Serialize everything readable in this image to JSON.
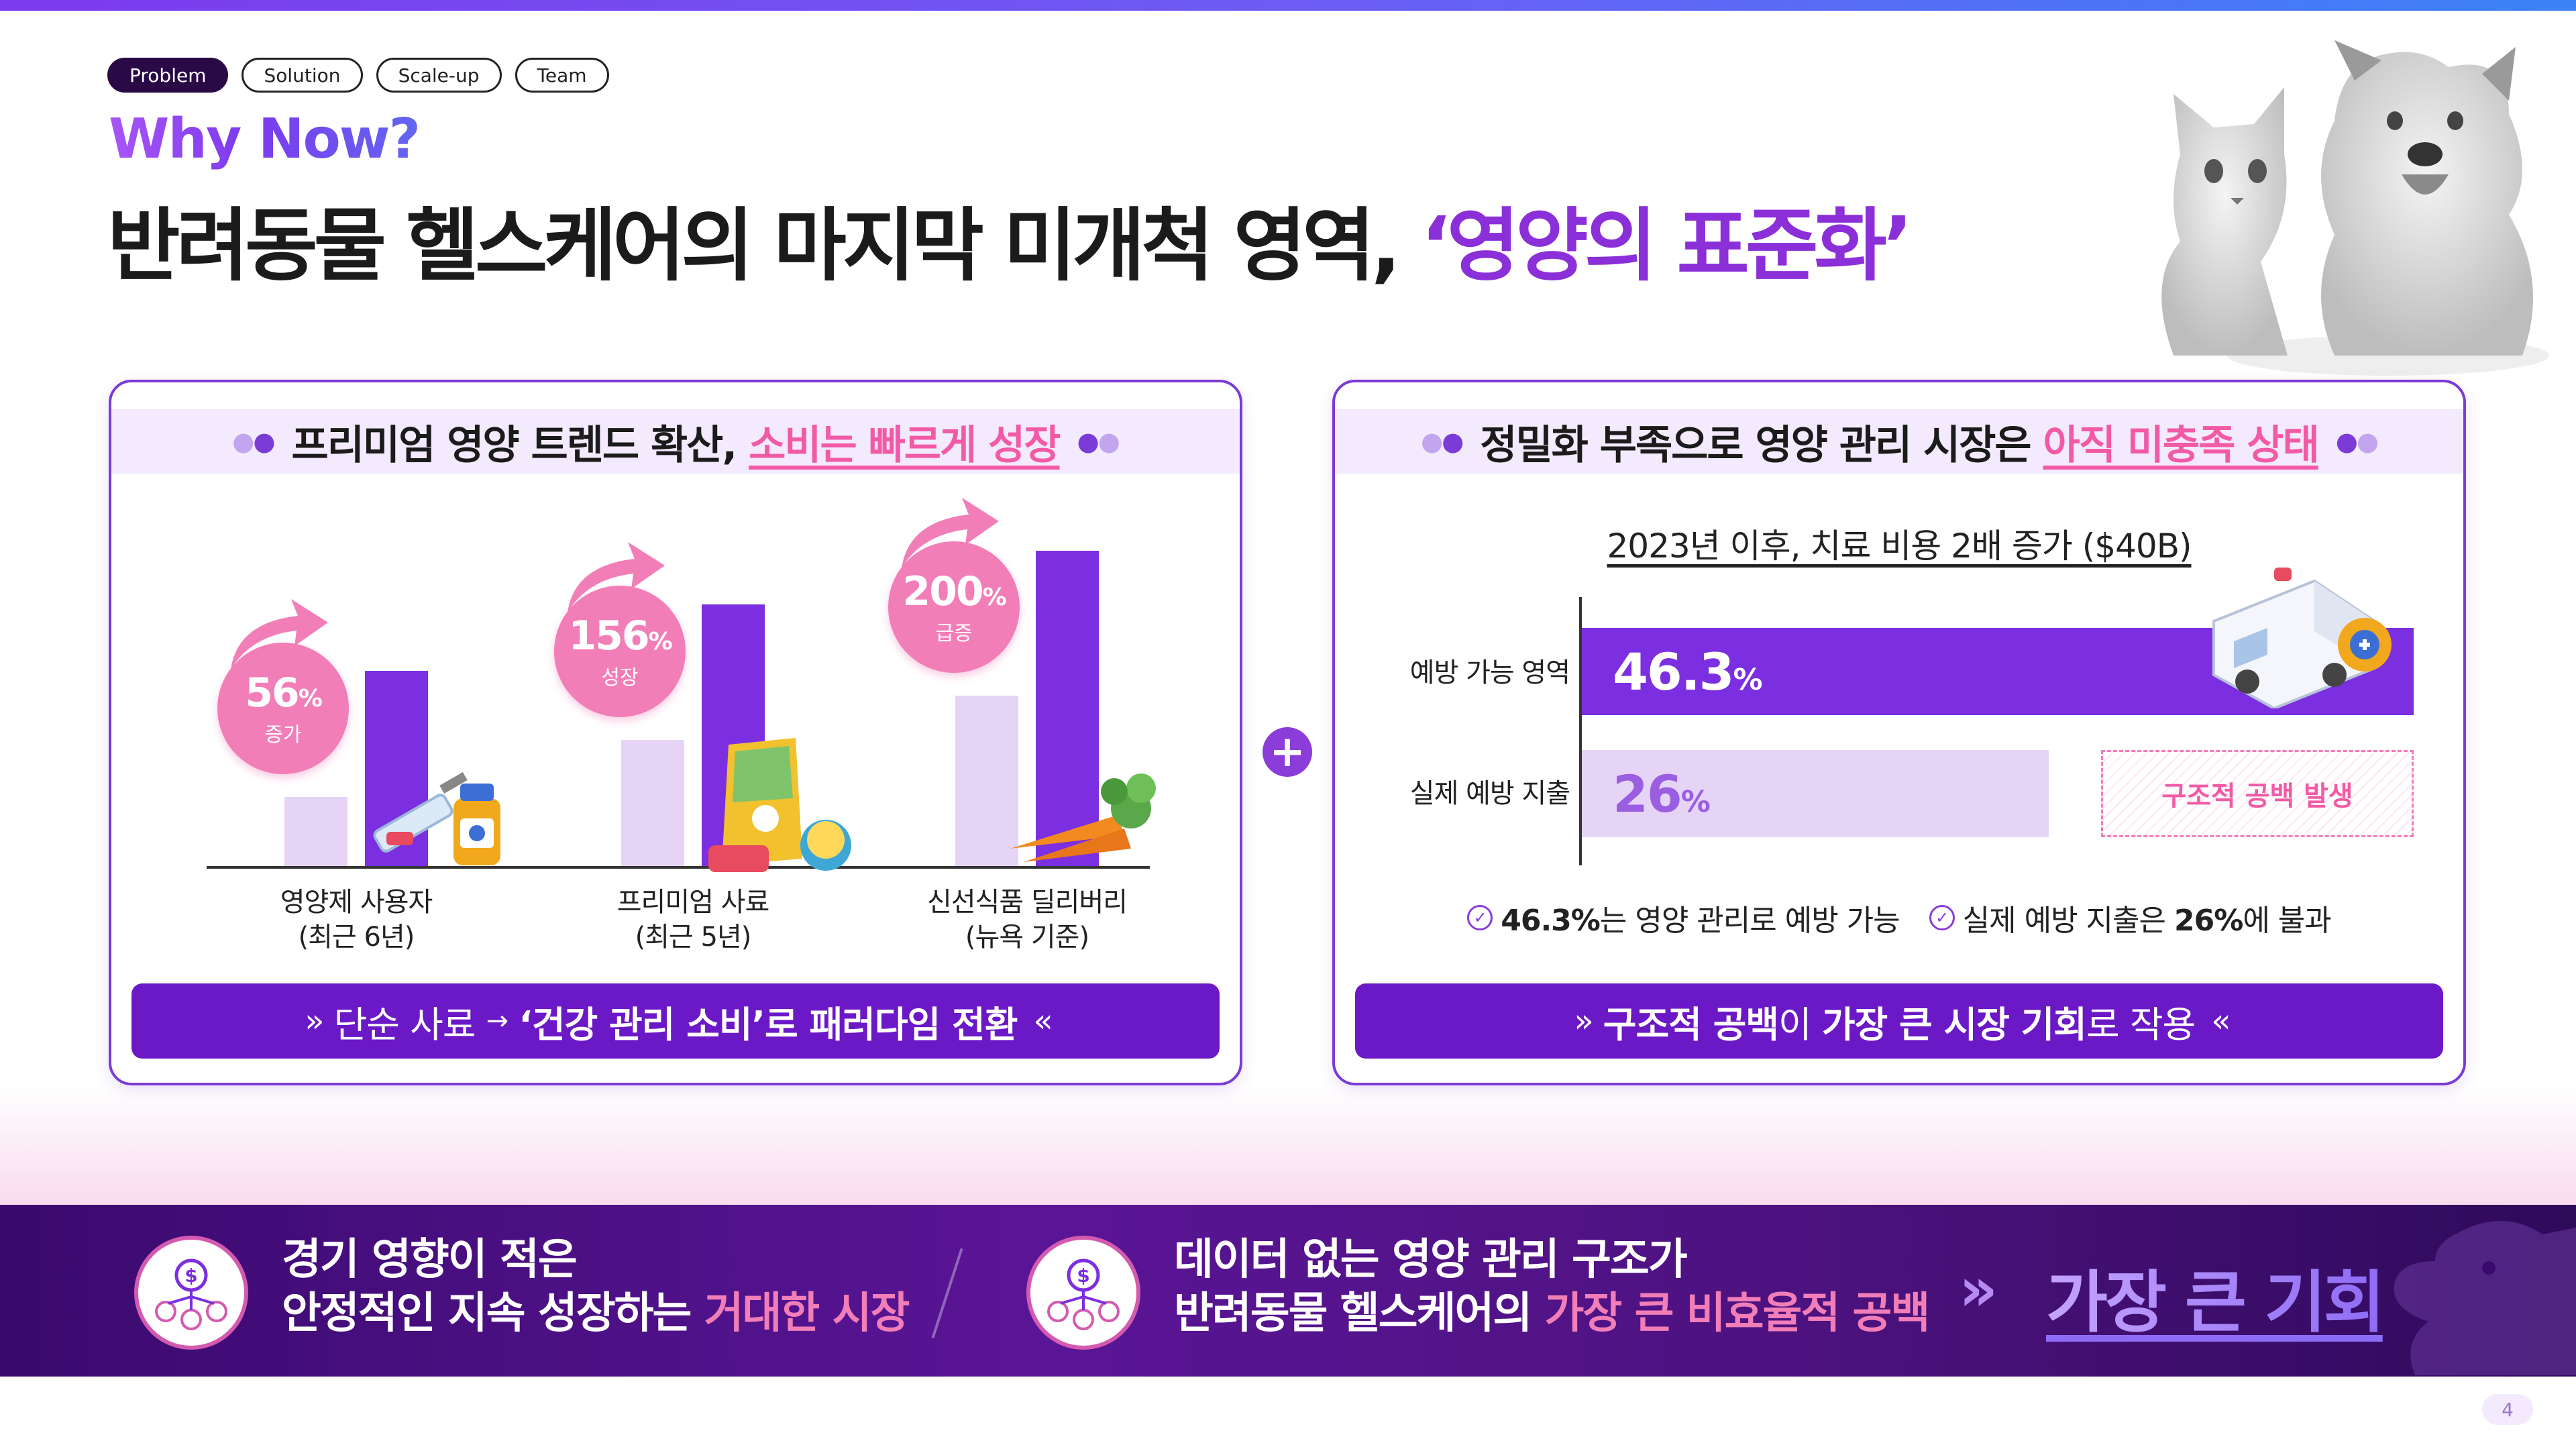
{
  "tabs": [
    "Problem",
    "Solution",
    "Scale-up",
    "Team"
  ],
  "header": {
    "kicker": "Why Now?",
    "title_main": "반려동물 헬스케어의 마지막 미개척 영역,",
    "title_highlight": "‘영양의 표준화’"
  },
  "left_panel": {
    "head_prefix": "프리미엄 영양 트렌드 확산,",
    "head_highlight": "소비는 빠르게 성장",
    "categories": [
      {
        "label_line1": "영양제 사용자",
        "label_line2": "(최근 6년)",
        "growth_value": "56",
        "growth_unit": "%",
        "growth_word": "증가",
        "before": 0.22,
        "after": 0.62
      },
      {
        "label_line1": "프리미엄 사료",
        "label_line2": "(최근 5년)",
        "growth_value": "156",
        "growth_unit": "%",
        "growth_word": "성장",
        "before": 0.4,
        "after": 0.83
      },
      {
        "label_line1": "신선식품 딜리버리",
        "label_line2": "(뉴욕 기준)",
        "growth_value": "200",
        "growth_unit": "%",
        "growth_word": "급증",
        "before": 0.54,
        "after": 1.0
      }
    ],
    "footer_prefix": "단순 사료",
    "footer_arrow": "→",
    "footer_bold": "‘건강 관리 소비’로 패러다임 전환"
  },
  "right_panel": {
    "head_prefix": "정밀화 부족으로 영양 관리 시장은",
    "head_highlight": "아직 미충족 상태",
    "subtitle": "2023년 이후, 치료 비용 2배 증가 ($40B)",
    "bars": [
      {
        "label": "예방 가능 영역",
        "value": "46.3",
        "unit": "%",
        "fraction": 0.463
      },
      {
        "label": "실제 예방 지출",
        "value": "26",
        "unit": "%",
        "fraction": 0.26
      }
    ],
    "gap_label": "구조적 공백 발생",
    "check1_bold": "46.3%",
    "check1_rest": "는 영양 관리로 예방 가능",
    "check2_pre": "실제 예방 지출은",
    "check2_bold": "26%",
    "check2_post": "에 불과",
    "footer_bold1": "구조적 공백",
    "footer_mid": "이",
    "footer_bold2": "가장 큰 시장 기회",
    "footer_post": "로 작용"
  },
  "bottom": {
    "item1_line1": "경기 영향이 적은",
    "item1_line2_pre": "안정적인 지속 성장하는",
    "item1_line2_pink": "거대한 시장",
    "item2_line1": "데이터 없는 영양 관리 구조가",
    "item2_line2_pre": "반려동물 헬스케어의",
    "item2_line2_pink": "가장 큰 비효율적 공백",
    "conclusion": "가장 큰 기회"
  },
  "page_number": "4",
  "colors": {
    "purple": "#7b2fe0",
    "pink": "#f25aa6",
    "light_purple": "#e6d4f7",
    "dark_band": "#4d127f"
  },
  "icons": [
    "money-network-icon",
    "paw-icon",
    "syringe-icon",
    "ambulance-icon",
    "carrot-icon",
    "check-circle-icon"
  ]
}
